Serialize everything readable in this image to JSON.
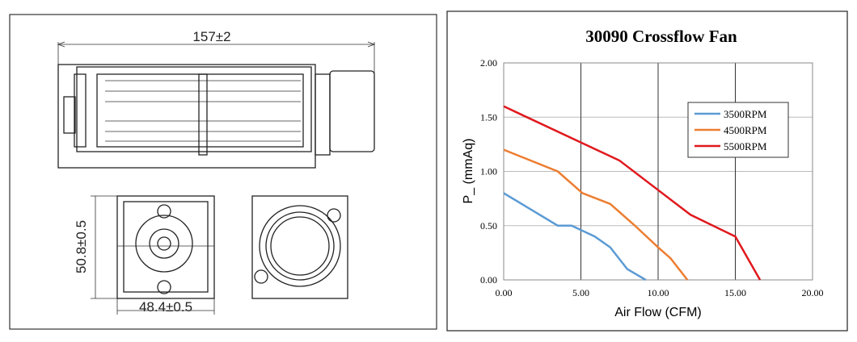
{
  "drawing": {
    "dimensions": [
      "157±2",
      "50.8±0.5",
      "48.4±0.5"
    ]
  },
  "chart_data": {
    "type": "line",
    "title": "30090 Crossflow Fan",
    "x_label": "Air Flow (CFM)",
    "y_label": "P_ (mmAq)",
    "xlim": [
      0,
      20
    ],
    "xticks": [
      {
        "value": 0,
        "label": "0.00"
      },
      {
        "value": 5,
        "label": "5.00"
      },
      {
        "value": 10,
        "label": "10.00"
      },
      {
        "value": 15,
        "label": "15.00"
      },
      {
        "value": 20,
        "label": "20.00"
      }
    ],
    "ylim": [
      0,
      2
    ],
    "yticks": [
      {
        "value": 0,
        "label": "0.00"
      },
      {
        "value": 0.5,
        "label": "0.50"
      },
      {
        "value": 1,
        "label": "1.00"
      },
      {
        "value": 1.5,
        "label": "1.50"
      },
      {
        "value": 2,
        "label": "2.00"
      }
    ],
    "grid": true,
    "legend": "upper right",
    "series": [
      {
        "name": "3500RPM",
        "color": "#5b9bd5",
        "x": [
          0,
          3.5,
          4.4,
          5.9,
          6.9,
          8,
          9.2
        ],
        "values": [
          0.8,
          0.5,
          0.5,
          0.4,
          0.3,
          0.1,
          0
        ]
      },
      {
        "name": "4500RPM",
        "color": "#ed7d31",
        "x": [
          0,
          3.5,
          5.1,
          6.9,
          8.5,
          10,
          10.8,
          11.9
        ],
        "values": [
          1.2,
          1,
          0.8,
          0.7,
          0.5,
          0.3,
          0.2,
          0
        ]
      },
      {
        "name": "5500RPM",
        "color": "#e0191e",
        "x": [
          0,
          7.5,
          12.1,
          15,
          16.6
        ],
        "values": [
          1.6,
          1.1,
          0.6,
          0.4,
          0
        ]
      }
    ]
  }
}
